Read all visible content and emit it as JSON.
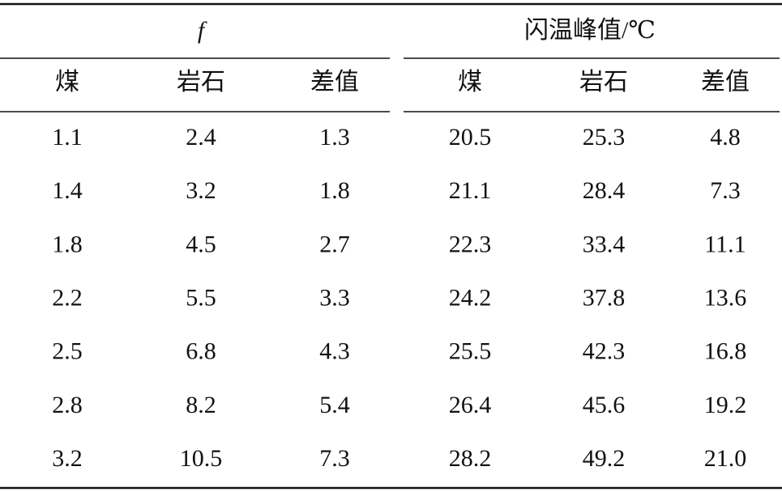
{
  "table": {
    "group_headers": [
      "f",
      "闪温峰值/℃"
    ],
    "columns": [
      "煤",
      "岩石",
      "差值",
      "煤",
      "岩石",
      "差值"
    ],
    "rows": [
      [
        "1.1",
        "2.4",
        "1.3",
        "20.5",
        "25.3",
        "4.8"
      ],
      [
        "1.4",
        "3.2",
        "1.8",
        "21.1",
        "28.4",
        "7.3"
      ],
      [
        "1.8",
        "4.5",
        "2.7",
        "22.3",
        "33.4",
        "11.1"
      ],
      [
        "2.2",
        "5.5",
        "3.3",
        "24.2",
        "37.8",
        "13.6"
      ],
      [
        "2.5",
        "6.8",
        "4.3",
        "25.5",
        "42.3",
        "16.8"
      ],
      [
        "2.8",
        "8.2",
        "5.4",
        "26.4",
        "45.6",
        "19.2"
      ],
      [
        "3.2",
        "10.5",
        "7.3",
        "28.2",
        "49.2",
        "21.0"
      ]
    ]
  }
}
